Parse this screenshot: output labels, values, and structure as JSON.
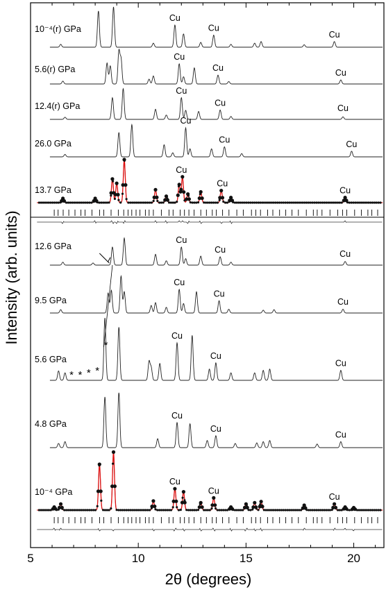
{
  "chart_data": {
    "type": "line",
    "xlabel": "2θ (degrees)",
    "ylabel": "Intensity (arb. units)",
    "xlim": [
      5,
      21.4
    ],
    "xticks": [
      5,
      10,
      15,
      20
    ],
    "grid": false,
    "legend": "none",
    "peak_marker_label": "Cu",
    "series": [
      {
        "name": "10⁻⁴(r) GPa",
        "peaks": [
          [
            6.4,
            0.07
          ],
          [
            8.15,
            0.9
          ],
          [
            8.85,
            1.0
          ],
          [
            10.7,
            0.1
          ],
          [
            11.7,
            0.55
          ],
          [
            12.1,
            0.33
          ],
          [
            12.9,
            0.12
          ],
          [
            13.5,
            0.3
          ],
          [
            14.3,
            0.07
          ],
          [
            15.4,
            0.1
          ],
          [
            15.7,
            0.14
          ],
          [
            17.7,
            0.06
          ],
          [
            19.1,
            0.14
          ]
        ],
        "cu": [
          11.7,
          13.5,
          19.1
        ]
      },
      {
        "name": "5.6(r) GPa",
        "peaks": [
          [
            6.5,
            0.07
          ],
          [
            8.55,
            0.52
          ],
          [
            8.7,
            0.45
          ],
          [
            9.1,
            0.8
          ],
          [
            9.2,
            0.6
          ],
          [
            10.5,
            0.12
          ],
          [
            10.7,
            0.2
          ],
          [
            11.9,
            0.5
          ],
          [
            12.1,
            0.18
          ],
          [
            12.6,
            0.4
          ],
          [
            13.7,
            0.22
          ],
          [
            14.2,
            0.06
          ],
          [
            19.4,
            0.1
          ]
        ],
        "cu": [
          11.9,
          13.7,
          19.4
        ]
      },
      {
        "name": "12.4(r) GPa",
        "peaks": [
          [
            6.6,
            0.06
          ],
          [
            8.8,
            0.6
          ],
          [
            9.3,
            0.85
          ],
          [
            10.8,
            0.28
          ],
          [
            11.3,
            0.12
          ],
          [
            12.0,
            0.6
          ],
          [
            12.2,
            0.25
          ],
          [
            12.8,
            0.22
          ],
          [
            13.8,
            0.26
          ],
          [
            14.3,
            0.08
          ],
          [
            19.5,
            0.07
          ]
        ],
        "cu": [
          12.0,
          13.8,
          19.5
        ]
      },
      {
        "name": "26.0 GPa",
        "peaks": [
          [
            6.6,
            0.06
          ],
          [
            9.1,
            0.6
          ],
          [
            9.7,
            0.8
          ],
          [
            11.2,
            0.3
          ],
          [
            11.6,
            0.1
          ],
          [
            12.2,
            0.72
          ],
          [
            12.4,
            0.2
          ],
          [
            13.4,
            0.2
          ],
          [
            14.0,
            0.25
          ],
          [
            14.8,
            0.08
          ],
          [
            19.9,
            0.14
          ]
        ],
        "cu": [
          12.2,
          14.0,
          19.9
        ]
      },
      {
        "name": "13.7 GPa",
        "peaks": [
          [
            6.5,
            0.1
          ],
          [
            8.0,
            0.1
          ],
          [
            8.8,
            0.55
          ],
          [
            9.0,
            0.45
          ],
          [
            9.35,
            1.0
          ],
          [
            10.8,
            0.3
          ],
          [
            11.3,
            0.15
          ],
          [
            11.9,
            0.42
          ],
          [
            12.05,
            0.6
          ],
          [
            12.3,
            0.2
          ],
          [
            12.9,
            0.25
          ],
          [
            13.85,
            0.28
          ],
          [
            14.3,
            0.12
          ],
          [
            19.6,
            0.12
          ]
        ],
        "cu": [
          12.0,
          13.9,
          19.6
        ],
        "fitted": true
      },
      {
        "name": "12.6 GPa",
        "peaks": [
          [
            6.5,
            0.08
          ],
          [
            7.9,
            0.06
          ],
          [
            8.8,
            0.5
          ],
          [
            9.35,
            0.75
          ],
          [
            10.8,
            0.3
          ],
          [
            11.3,
            0.12
          ],
          [
            12.0,
            0.5
          ],
          [
            12.2,
            0.18
          ],
          [
            12.9,
            0.25
          ],
          [
            13.8,
            0.23
          ],
          [
            14.3,
            0.08
          ],
          [
            19.6,
            0.1
          ]
        ],
        "cu": [
          12.0,
          13.8,
          19.6
        ]
      },
      {
        "name": "9.5 GPa",
        "peaks": [
          [
            6.4,
            0.07
          ],
          [
            8.6,
            0.42
          ],
          [
            8.75,
            0.48
          ],
          [
            9.2,
            0.78
          ],
          [
            9.35,
            0.45
          ],
          [
            10.6,
            0.16
          ],
          [
            10.8,
            0.22
          ],
          [
            11.3,
            0.12
          ],
          [
            11.9,
            0.5
          ],
          [
            12.1,
            0.2
          ],
          [
            12.7,
            0.45
          ],
          [
            13.75,
            0.26
          ],
          [
            14.2,
            0.08
          ],
          [
            15.8,
            0.06
          ],
          [
            16.3,
            0.07
          ],
          [
            19.5,
            0.08
          ]
        ],
        "cu": [
          11.9,
          13.75,
          19.5
        ]
      },
      {
        "name": "5.6 GPa",
        "peaks": [
          [
            6.3,
            0.15
          ],
          [
            6.6,
            0.12
          ],
          [
            8.45,
            1.0
          ],
          [
            9.1,
            0.85
          ],
          [
            10.5,
            0.3
          ],
          [
            10.6,
            0.2
          ],
          [
            11.0,
            0.27
          ],
          [
            11.8,
            0.6
          ],
          [
            12.5,
            0.72
          ],
          [
            13.3,
            0.18
          ],
          [
            13.6,
            0.28
          ],
          [
            14.3,
            0.12
          ],
          [
            15.4,
            0.12
          ],
          [
            15.8,
            0.16
          ],
          [
            16.1,
            0.18
          ],
          [
            19.4,
            0.16
          ]
        ],
        "cu": [
          11.8,
          13.6,
          19.4
        ]
      },
      {
        "name": "4.8 GPa",
        "peaks": [
          [
            6.3,
            0.07
          ],
          [
            6.6,
            0.1
          ],
          [
            8.45,
            0.85
          ],
          [
            9.1,
            0.92
          ],
          [
            10.9,
            0.15
          ],
          [
            11.8,
            0.42
          ],
          [
            12.4,
            0.4
          ],
          [
            13.2,
            0.12
          ],
          [
            13.6,
            0.2
          ],
          [
            14.5,
            0.07
          ],
          [
            15.5,
            0.08
          ],
          [
            15.8,
            0.1
          ],
          [
            16.1,
            0.12
          ],
          [
            18.3,
            0.06
          ],
          [
            19.4,
            0.1
          ]
        ],
        "cu": [
          11.8,
          13.6,
          19.4
        ]
      },
      {
        "name": "10⁻⁴ GPa",
        "peaks": [
          [
            6.1,
            0.05
          ],
          [
            6.4,
            0.1
          ],
          [
            8.2,
            0.75
          ],
          [
            8.85,
            0.95
          ],
          [
            10.7,
            0.15
          ],
          [
            11.7,
            0.35
          ],
          [
            12.1,
            0.3
          ],
          [
            12.9,
            0.12
          ],
          [
            13.5,
            0.2
          ],
          [
            14.3,
            0.05
          ],
          [
            15.0,
            0.1
          ],
          [
            15.4,
            0.12
          ],
          [
            15.7,
            0.14
          ],
          [
            17.7,
            0.08
          ],
          [
            19.1,
            0.1
          ],
          [
            19.6,
            0.05
          ],
          [
            20.0,
            0.04
          ]
        ],
        "cu": [
          11.7,
          13.5,
          19.1
        ],
        "fitted": true
      }
    ],
    "annotations": [
      "*",
      "*",
      "*",
      "*",
      "*"
    ]
  }
}
